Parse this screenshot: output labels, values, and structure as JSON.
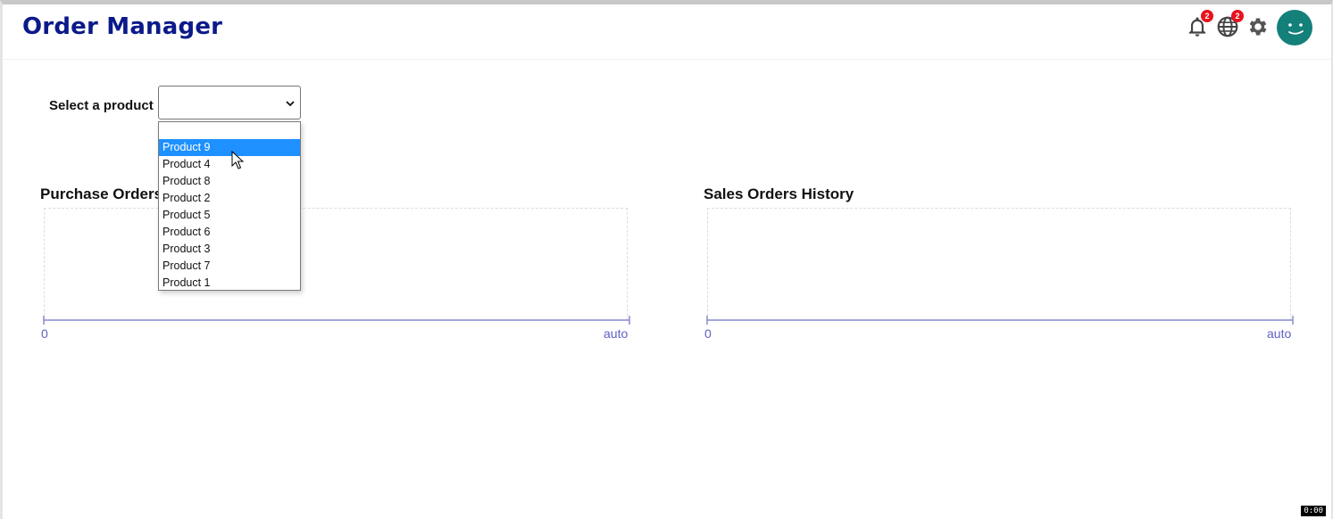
{
  "app": {
    "title": "Order Manager"
  },
  "header": {
    "notifications_badge": "2",
    "language_badge": "2"
  },
  "filter": {
    "label": "Select a product",
    "selected_value": "",
    "options": [
      "",
      "Product 9",
      "Product 4",
      "Product 8",
      "Product 2",
      "Product 5",
      "Product 6",
      "Product 3",
      "Product 7",
      "Product 1"
    ],
    "highlighted_option": "Product 9"
  },
  "charts": {
    "purchase": {
      "title": "Purchase Orders",
      "axis_min": "0",
      "axis_max": "auto"
    },
    "sales": {
      "title": "Sales Orders History",
      "axis_min": "0",
      "axis_max": "auto"
    }
  },
  "recording_timer": "0:00",
  "colors": {
    "title": "#0b1a8a",
    "accent": "#1e90ff",
    "avatar": "#13807a",
    "badge": "#e8121d",
    "axis": "#5f5fc4"
  }
}
